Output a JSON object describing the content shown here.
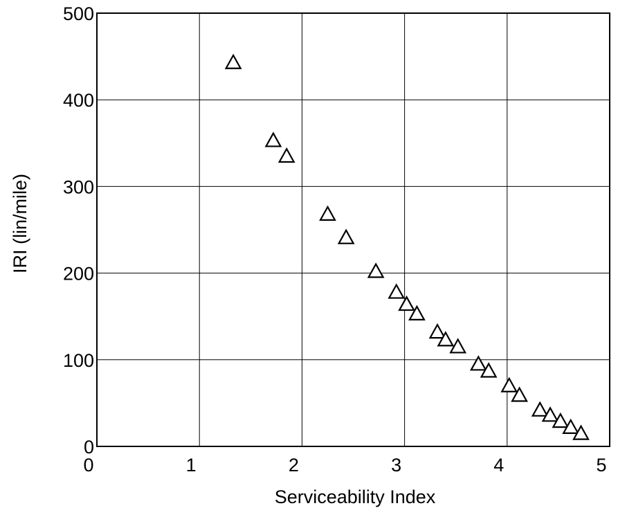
{
  "chart_data": {
    "type": "scatter",
    "xlabel": "Serviceability Index",
    "ylabel": "IRI (lin/mile)",
    "xlim": [
      0,
      5
    ],
    "ylim": [
      0,
      500
    ],
    "x_ticks": [
      0,
      1,
      2,
      3,
      4,
      5
    ],
    "y_ticks": [
      0,
      100,
      200,
      300,
      400,
      500
    ],
    "grid": true,
    "marker": "open-triangle",
    "series": [
      {
        "x": [
          1.33,
          1.72,
          1.85,
          2.25,
          2.43,
          2.72,
          2.92,
          3.02,
          3.12,
          3.32,
          3.4,
          3.52,
          3.72,
          3.82,
          4.02,
          4.12,
          4.32,
          4.42,
          4.52,
          4.62,
          4.72
        ],
        "y": [
          443,
          353,
          335,
          268,
          241,
          202,
          178,
          164,
          153,
          132,
          123,
          115,
          95,
          87,
          70,
          59,
          42,
          36,
          29,
          22,
          15
        ]
      }
    ]
  }
}
